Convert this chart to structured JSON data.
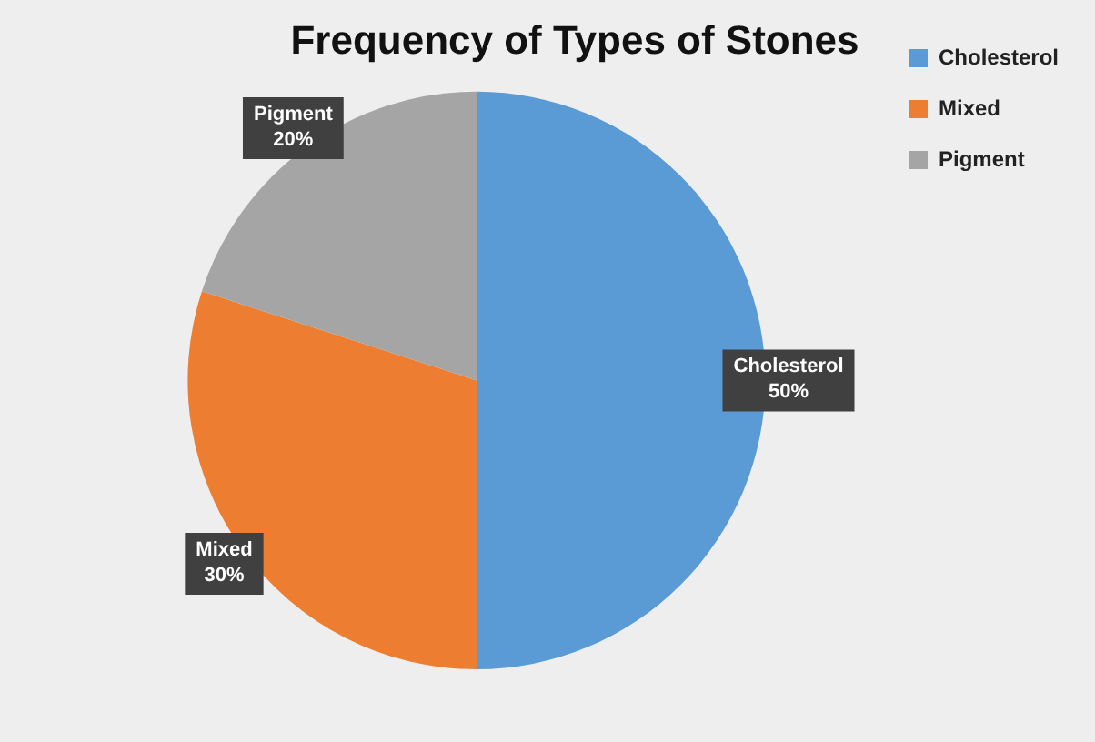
{
  "chart_data": {
    "type": "pie",
    "title": "Frequency of Types of Stones",
    "categories": [
      "Cholesterol",
      "Mixed",
      "Pigment"
    ],
    "values": [
      50,
      30,
      20
    ],
    "colors": [
      "#5b9bd5",
      "#ed7d31",
      "#a5a5a5"
    ],
    "value_labels": [
      "50%",
      "30%",
      "20%"
    ],
    "legend": "top right"
  }
}
